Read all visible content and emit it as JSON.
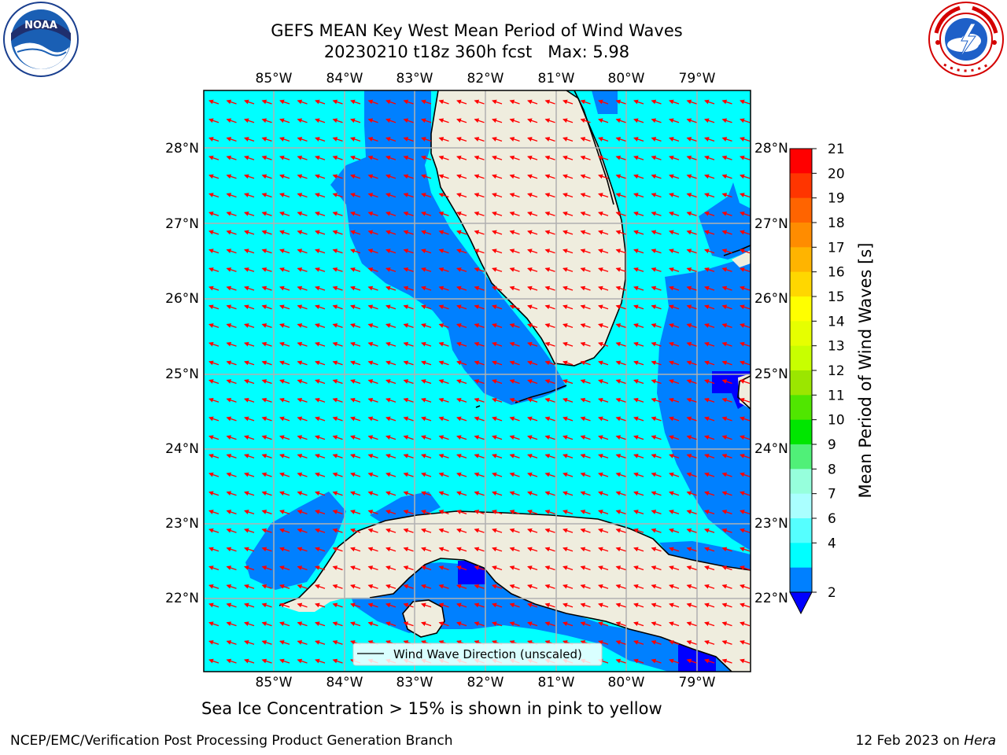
{
  "title": {
    "line1": "GEFS MEAN Key West Mean Period of Wind Waves",
    "line2": "20230210 t18z 360h fcst   Max: 5.98"
  },
  "map": {
    "lon_ticks": [
      "85°W",
      "84°W",
      "83°W",
      "82°W",
      "81°W",
      "80°W",
      "79°W"
    ],
    "lat_ticks": [
      "28°N",
      "27°N",
      "26°N",
      "25°N",
      "24°N",
      "23°N",
      "22°N"
    ],
    "legend_label": "Wind Wave Direction (unscaled)",
    "colors": {
      "band_4_6": "#00ffff",
      "band_2_4": "#0080ff",
      "band_lt_2": "#0000ff",
      "land": "#efedde",
      "arrows": "#ff0000",
      "grid": "#b0b0b0"
    }
  },
  "colorbar": {
    "label": "Mean Period of Wind Waves [s]",
    "ticks": [
      "21",
      "20",
      "19",
      "18",
      "17",
      "16",
      "15",
      "14",
      "13",
      "12",
      "11",
      "10",
      "9",
      "8",
      "7",
      "6",
      "4",
      "2"
    ],
    "colors": [
      "#ff0000",
      "#ff3500",
      "#ff6400",
      "#ff8c00",
      "#ffb400",
      "#ffd700",
      "#ffff00",
      "#e6ff00",
      "#c8ff00",
      "#9be600",
      "#50e600",
      "#00e600",
      "#50f078",
      "#96ffdc",
      "#aaffff",
      "#55ffff",
      "#00ffff",
      "#0080ff"
    ],
    "under_color": "#0000ff"
  },
  "note": "Sea Ice Concentration > 15% is shown in pink to yellow",
  "footer": {
    "left": "NCEP/EMC/Verification Post Processing Product Generation Branch",
    "right_date": "12 Feb 2023 on ",
    "right_machine": "Hera"
  },
  "logos": {
    "left": "noaa-logo",
    "right": "nws-logo"
  }
}
